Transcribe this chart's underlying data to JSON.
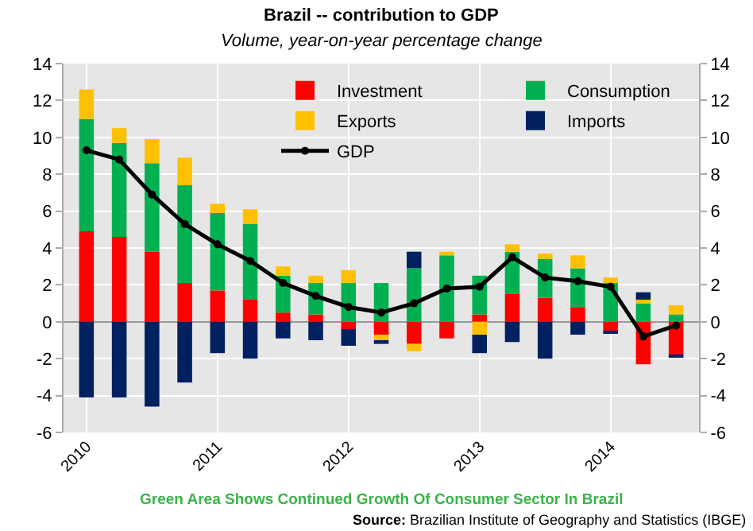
{
  "chart_data": {
    "type": "bar",
    "stacked": true,
    "title": "Brazil -- contribution to GDP",
    "subtitle": "Volume, year-on-year percentage change",
    "categories": [
      "2010",
      null,
      null,
      null,
      "2011",
      null,
      null,
      null,
      "2012",
      null,
      null,
      null,
      "2013",
      null,
      null,
      null,
      "2014",
      null,
      null
    ],
    "series": [
      {
        "name": "Investment",
        "color": "#ff0000",
        "values": [
          4.9,
          4.6,
          3.8,
          2.1,
          1.7,
          1.2,
          0.5,
          0.4,
          -0.4,
          -0.7,
          -1.2,
          -0.9,
          0.4,
          1.5,
          1.3,
          0.8,
          -0.5,
          -2.3,
          -1.8
        ]
      },
      {
        "name": "Consumption",
        "color": "#00b050",
        "values": [
          6.1,
          5.1,
          4.8,
          5.3,
          4.2,
          4.1,
          2.0,
          1.7,
          2.1,
          2.1,
          2.9,
          3.6,
          2.1,
          2.3,
          2.1,
          2.1,
          2.1,
          1.0,
          0.4
        ]
      },
      {
        "name": "Exports",
        "color": "#ffc000",
        "values": [
          1.6,
          0.8,
          1.3,
          1.5,
          0.5,
          0.8,
          0.5,
          0.4,
          0.7,
          -0.3,
          -0.4,
          0.2,
          -0.7,
          0.4,
          0.3,
          0.7,
          0.3,
          0.2,
          0.5
        ]
      },
      {
        "name": "Imports",
        "color": "#002060",
        "values": [
          -4.1,
          -4.1,
          -4.6,
          -3.3,
          -1.7,
          -2.0,
          -0.9,
          -1.0,
          -0.9,
          -0.2,
          0.9,
          null,
          -1.0,
          -1.1,
          -2.0,
          -0.7,
          -0.1,
          0.4,
          -0.1
        ]
      },
      {
        "name": "GDP",
        "type": "line",
        "color": "#000000",
        "marker": "circle",
        "line_style": "solid",
        "values": [
          9.3,
          8.8,
          6.9,
          5.3,
          4.2,
          3.3,
          2.1,
          1.4,
          0.8,
          0.5,
          1.0,
          1.8,
          1.9,
          3.5,
          2.4,
          2.2,
          1.9,
          -0.8,
          -0.2
        ]
      }
    ],
    "ylim": [
      -6,
      14
    ],
    "yticks": [
      -6,
      -4,
      -2,
      0,
      2,
      4,
      6,
      8,
      10,
      12,
      14
    ],
    "y2lim": [
      -6,
      14
    ],
    "y2ticks": [
      -6,
      -4,
      -2,
      0,
      2,
      4,
      6,
      8,
      10,
      12,
      14
    ],
    "grid": true,
    "legend": "top",
    "annotations": [
      "Green Area Shows Continued Growth Of Consumer Sector In Brazil",
      "Source: Brazilian Institute of Geography and Statistics (IBGE)"
    ]
  }
}
